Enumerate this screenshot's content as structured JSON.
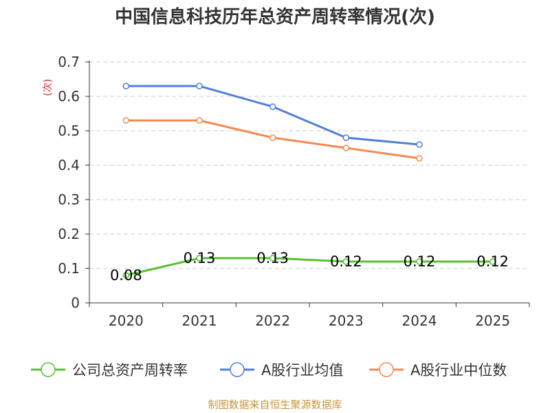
{
  "chart_data": {
    "type": "line",
    "title": "中国信息科技历年总资产周转率情况(次)",
    "ylabel": "(次)",
    "xlabel": "",
    "ylim": [
      0,
      0.7
    ],
    "yticks": [
      0,
      0.1,
      0.2,
      0.3,
      0.4,
      0.5,
      0.6,
      0.7
    ],
    "ytick_labels": [
      "0",
      "0.1",
      "0.2",
      "0.3",
      "0.4",
      "0.5",
      "0.6",
      "0.7"
    ],
    "categories": [
      "2020",
      "2021",
      "2022",
      "2023",
      "2024",
      "2025"
    ],
    "grid": true,
    "legend_position": "bottom",
    "series": [
      {
        "name": "公司总资产周转率",
        "color": "#5ac030",
        "values": [
          0.08,
          0.13,
          0.13,
          0.12,
          0.12,
          0.12
        ],
        "labels": [
          "0.08",
          "0.13",
          "0.13",
          "0.12",
          "0.12",
          "0.12"
        ]
      },
      {
        "name": "A股行业均值",
        "color": "#4f7fd8",
        "values": [
          0.63,
          0.63,
          0.57,
          0.48,
          0.46,
          null
        ]
      },
      {
        "name": "A股行业中位数",
        "color": "#f5894f",
        "values": [
          0.53,
          0.53,
          0.48,
          0.45,
          0.42,
          null
        ]
      }
    ]
  },
  "source": "制图数据来自恒生聚源数据库",
  "colors": {
    "axis_label": "#333333",
    "ylabel": "#dd2222",
    "grid": "#cccccc",
    "source": "#c8963c"
  }
}
